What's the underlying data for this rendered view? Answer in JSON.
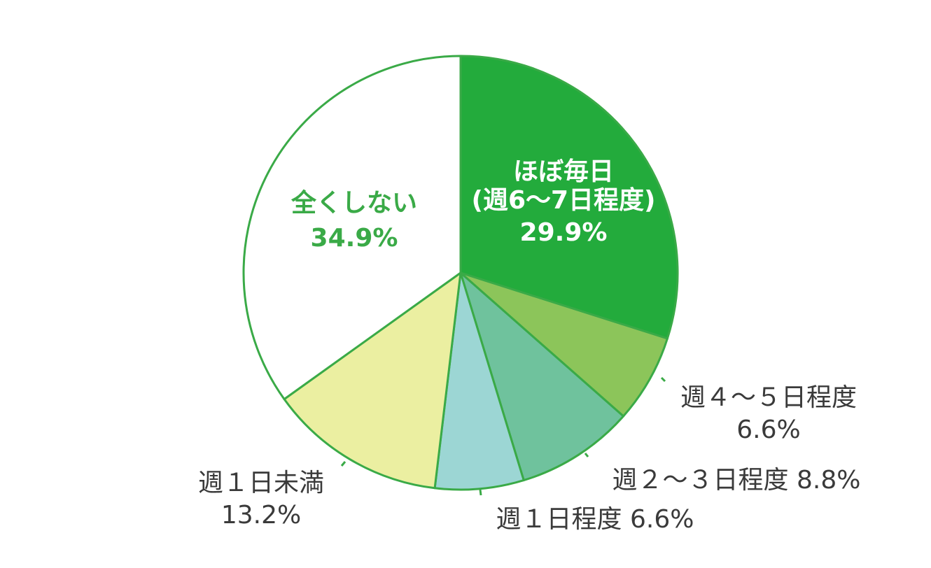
{
  "chart_data": {
    "type": "pie",
    "title": "",
    "slices": [
      {
        "name": "ほぼ毎日(週6～7日程度)",
        "value": 29.9,
        "color": "#23ab3c"
      },
      {
        "name": "週４～５日程度",
        "value": 6.6,
        "color": "#8cc55a"
      },
      {
        "name": "週２～３日程度",
        "value": 8.8,
        "color": "#6fc29d"
      },
      {
        "name": "週１日程度",
        "value": 6.6,
        "color": "#9cd6d4"
      },
      {
        "name": "週１日未満",
        "value": 13.2,
        "color": "#ebefa1"
      },
      {
        "name": "全くしない",
        "value": 34.9,
        "color": "#ffffff"
      }
    ],
    "stroke_color": "#3aaa47",
    "labels": [
      {
        "lines": [
          "ほぼ毎日",
          "(週6～7日程度)",
          "29.9%"
        ],
        "color": "#ffffff"
      },
      {
        "lines": [
          "週４～５日程度",
          "6.6%"
        ],
        "color": "#3a3a3a"
      },
      {
        "lines": [
          "週２～３日程度 8.8%"
        ],
        "color": "#3a3a3a"
      },
      {
        "lines": [
          "週１日程度 6.6%"
        ],
        "color": "#3a3a3a"
      },
      {
        "lines": [
          "週１日未満",
          "13.2%"
        ],
        "color": "#3a3a3a"
      },
      {
        "lines": [
          "全くしない",
          "34.9%"
        ],
        "color": "#3aaa47"
      }
    ]
  }
}
